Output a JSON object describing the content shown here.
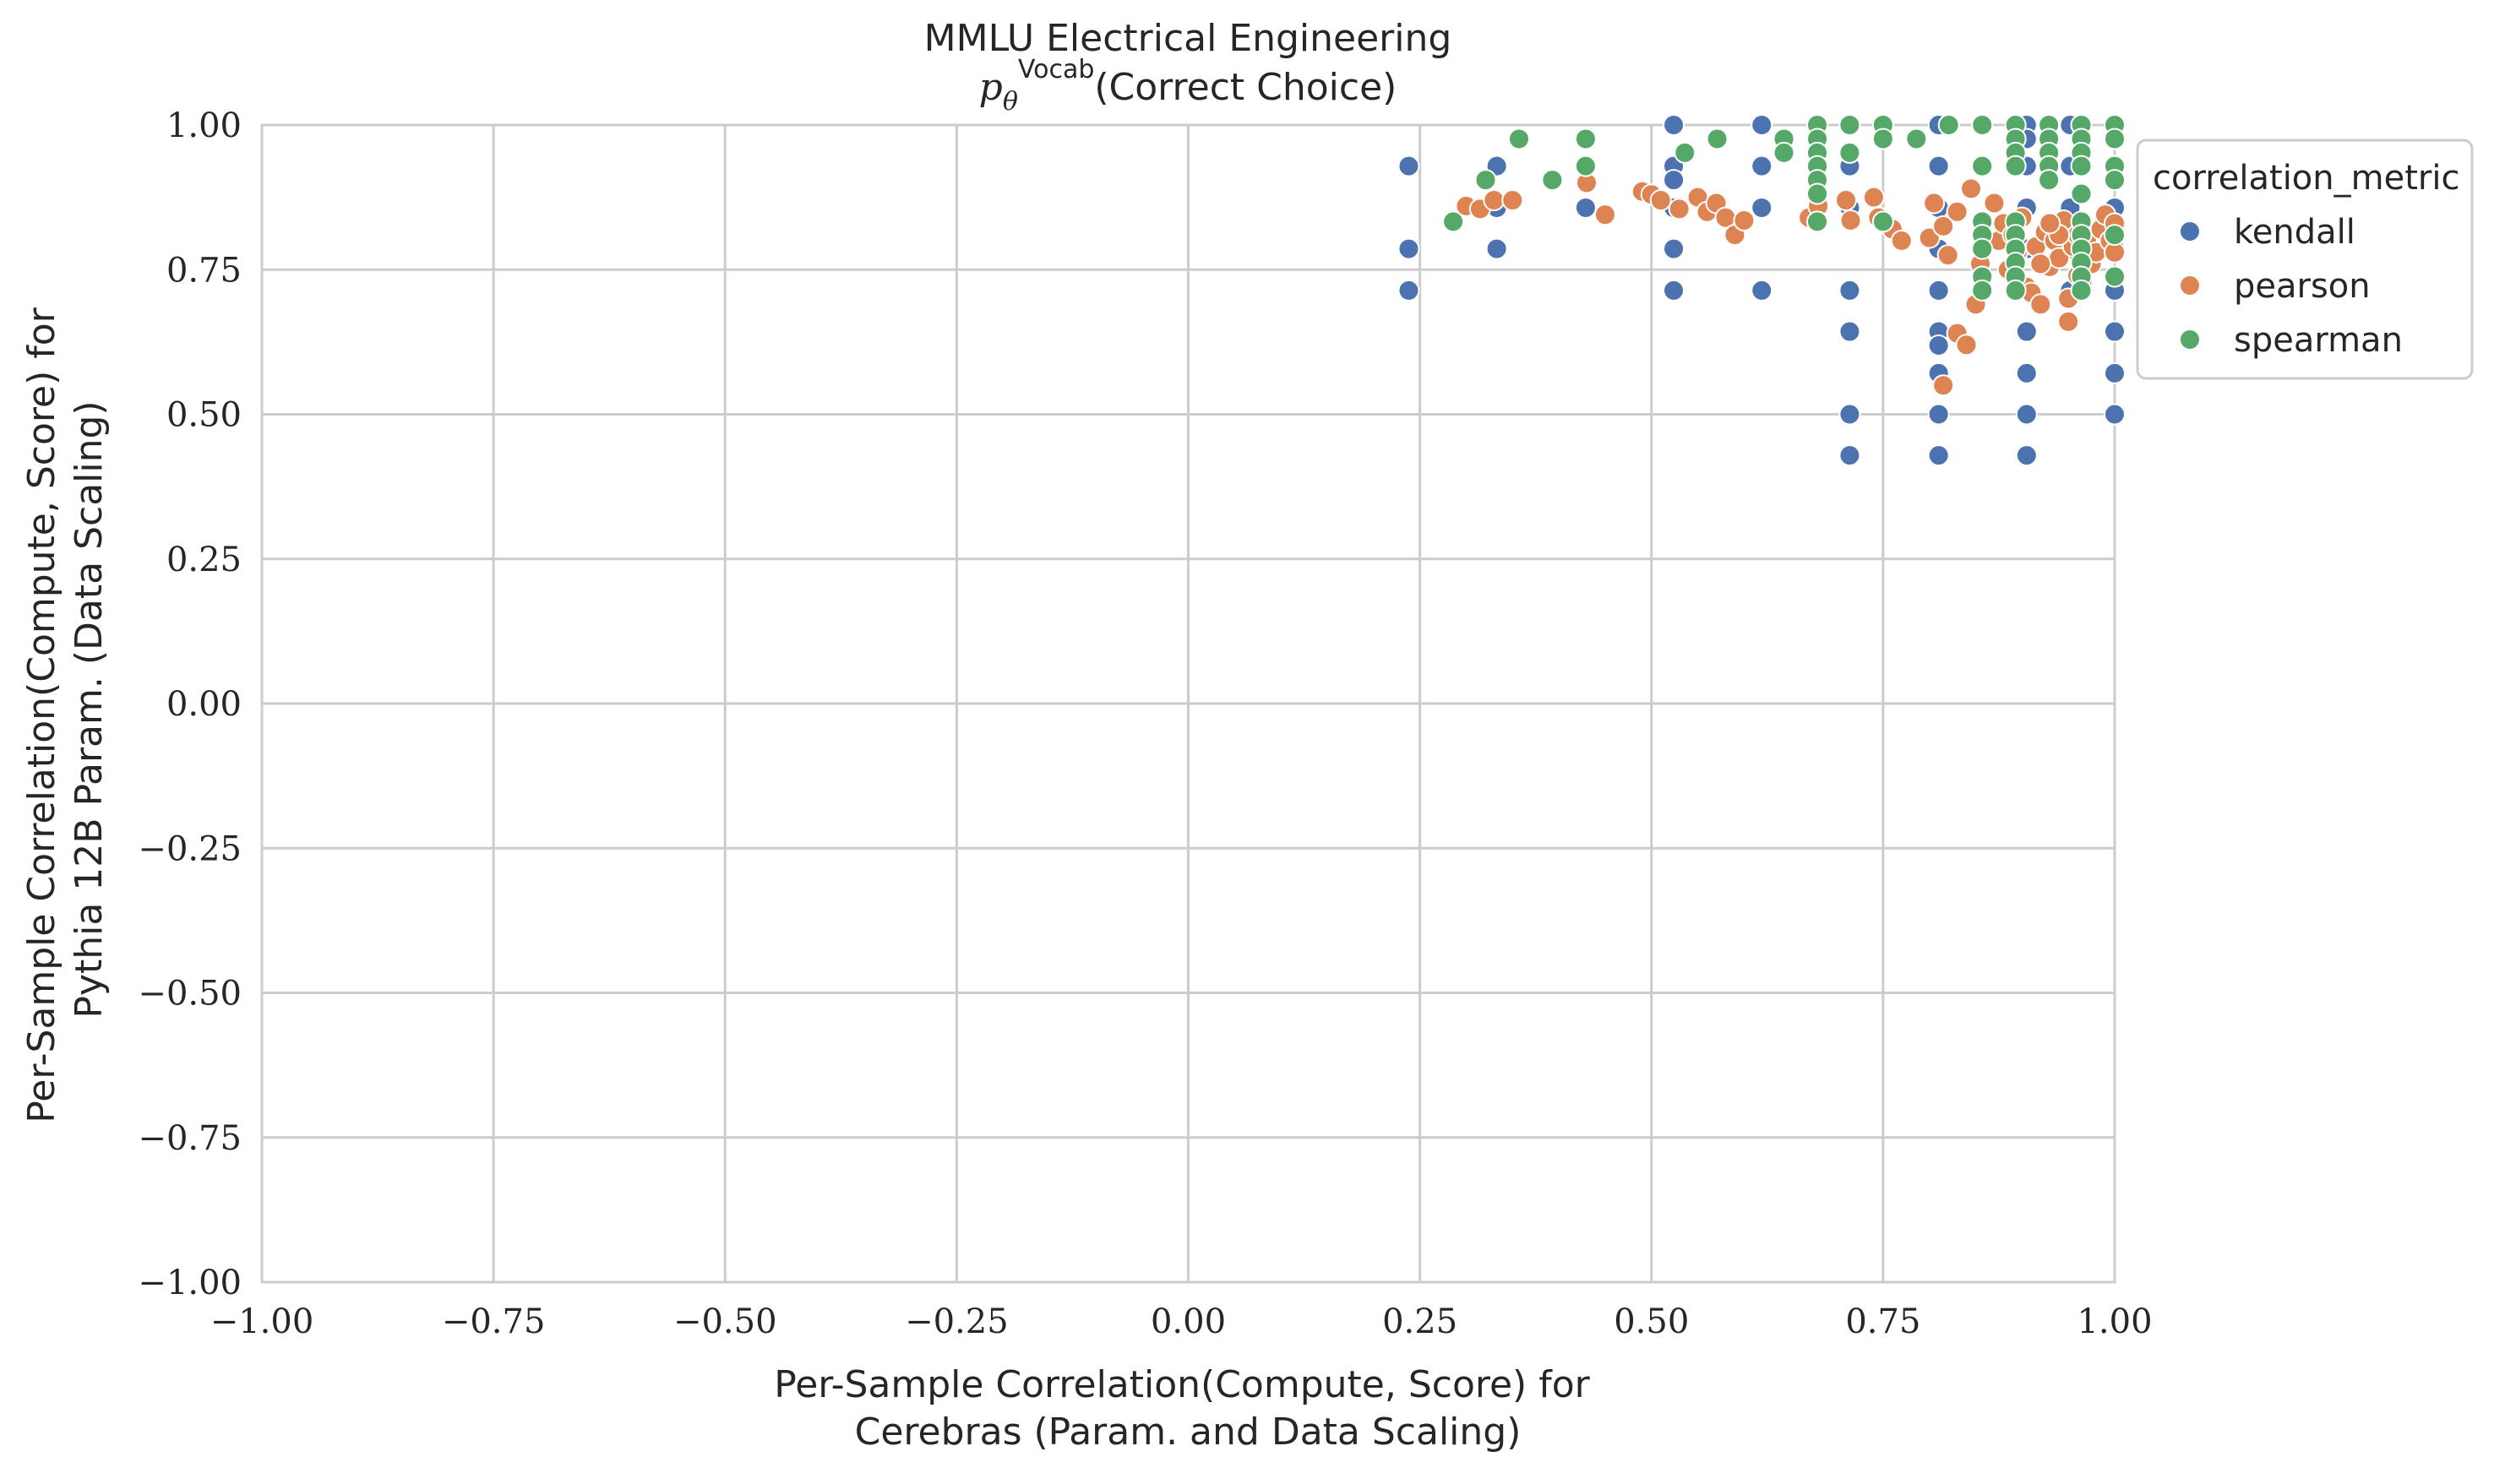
{
  "chart_data": {
    "type": "scatter",
    "title": "MMLU Electrical Engineering",
    "subtitle": {
      "base": "p",
      "subscript": "θ",
      "superscript": "Vocab",
      "rest": "(Correct Choice)"
    },
    "xlabel": [
      "Per-Sample Correlation(Compute, Score) for",
      "Cerebras (Param. and Data Scaling)"
    ],
    "ylabel": [
      "Per-Sample Correlation(Compute, Score) for",
      "Pythia 12B Param. (Data Scaling)"
    ],
    "xlim": [
      -1.0,
      1.0
    ],
    "ylim": [
      -1.0,
      1.0
    ],
    "xticks": [
      -1.0,
      -0.75,
      -0.5,
      -0.25,
      0.0,
      0.25,
      0.5,
      0.75,
      1.0
    ],
    "yticks": [
      -1.0,
      -0.75,
      -0.5,
      -0.25,
      0.0,
      0.25,
      0.5,
      0.75,
      1.0
    ],
    "xtick_labels": [
      "−1.00",
      "−0.75",
      "−0.50",
      "−0.25",
      "0.00",
      "0.25",
      "0.50",
      "0.75",
      "1.00"
    ],
    "ytick_labels": [
      "−1.00",
      "−0.75",
      "−0.50",
      "−0.25",
      "0.00",
      "0.25",
      "0.50",
      "0.75",
      "1.00"
    ],
    "grid": true,
    "legend": {
      "title": "correlation_metric",
      "placement": "outside-right-top"
    },
    "series": [
      {
        "name": "kendall",
        "color": "#4c72b0",
        "points": [
          [
            0.238,
            0.929
          ],
          [
            0.238,
            0.786
          ],
          [
            0.238,
            0.714
          ],
          [
            0.333,
            0.929
          ],
          [
            0.333,
            0.857
          ],
          [
            0.333,
            0.786
          ],
          [
            0.429,
            0.857
          ],
          [
            0.524,
            1.0
          ],
          [
            0.524,
            0.929
          ],
          [
            0.524,
            0.905
          ],
          [
            0.524,
            0.857
          ],
          [
            0.524,
            0.786
          ],
          [
            0.524,
            0.714
          ],
          [
            0.619,
            1.0
          ],
          [
            0.619,
            0.929
          ],
          [
            0.619,
            0.857
          ],
          [
            0.619,
            0.714
          ],
          [
            0.714,
            1.0
          ],
          [
            0.714,
            0.929
          ],
          [
            0.714,
            0.857
          ],
          [
            0.714,
            0.714
          ],
          [
            0.714,
            0.643
          ],
          [
            0.714,
            0.5
          ],
          [
            0.714,
            0.429
          ],
          [
            0.81,
            1.0
          ],
          [
            0.81,
            0.929
          ],
          [
            0.81,
            0.857
          ],
          [
            0.81,
            0.786
          ],
          [
            0.81,
            0.714
          ],
          [
            0.81,
            0.643
          ],
          [
            0.81,
            0.619
          ],
          [
            0.81,
            0.571
          ],
          [
            0.81,
            0.5
          ],
          [
            0.81,
            0.429
          ],
          [
            0.905,
            1.0
          ],
          [
            0.905,
            0.976
          ],
          [
            0.905,
            0.929
          ],
          [
            0.905,
            0.857
          ],
          [
            0.905,
            0.786
          ],
          [
            0.905,
            0.714
          ],
          [
            0.905,
            0.643
          ],
          [
            0.905,
            0.571
          ],
          [
            0.905,
            0.5
          ],
          [
            0.905,
            0.429
          ],
          [
            0.952,
            1.0
          ],
          [
            0.952,
            0.929
          ],
          [
            0.952,
            0.857
          ],
          [
            0.952,
            0.786
          ],
          [
            0.952,
            0.714
          ],
          [
            1.0,
            1.0
          ],
          [
            1.0,
            0.929
          ],
          [
            1.0,
            0.857
          ],
          [
            1.0,
            0.786
          ],
          [
            1.0,
            0.714
          ],
          [
            1.0,
            0.643
          ],
          [
            1.0,
            0.571
          ],
          [
            1.0,
            0.5
          ]
        ]
      },
      {
        "name": "pearson",
        "color": "#dd8452",
        "points": [
          [
            0.3,
            0.86
          ],
          [
            0.315,
            0.855
          ],
          [
            0.33,
            0.87
          ],
          [
            0.35,
            0.87
          ],
          [
            0.43,
            0.9
          ],
          [
            0.45,
            0.845
          ],
          [
            0.49,
            0.885
          ],
          [
            0.5,
            0.88
          ],
          [
            0.51,
            0.87
          ],
          [
            0.53,
            0.855
          ],
          [
            0.55,
            0.875
          ],
          [
            0.56,
            0.85
          ],
          [
            0.57,
            0.865
          ],
          [
            0.58,
            0.84
          ],
          [
            0.59,
            0.81
          ],
          [
            0.6,
            0.835
          ],
          [
            0.67,
            0.84
          ],
          [
            0.68,
            0.86
          ],
          [
            0.71,
            0.87
          ],
          [
            0.715,
            0.835
          ],
          [
            0.74,
            0.875
          ],
          [
            0.745,
            0.84
          ],
          [
            0.76,
            0.82
          ],
          [
            0.77,
            0.8
          ],
          [
            0.8,
            0.805
          ],
          [
            0.805,
            0.865
          ],
          [
            0.815,
            0.825
          ],
          [
            0.815,
            0.55
          ],
          [
            0.82,
            0.775
          ],
          [
            0.83,
            0.85
          ],
          [
            0.83,
            0.64
          ],
          [
            0.84,
            0.62
          ],
          [
            0.845,
            0.89
          ],
          [
            0.85,
            0.69
          ],
          [
            0.855,
            0.76
          ],
          [
            0.86,
            0.795
          ],
          [
            0.87,
            0.865
          ],
          [
            0.875,
            0.8
          ],
          [
            0.88,
            0.83
          ],
          [
            0.885,
            0.75
          ],
          [
            0.89,
            0.81
          ],
          [
            0.895,
            0.78
          ],
          [
            0.9,
            0.84
          ],
          [
            0.905,
            0.72
          ],
          [
            0.91,
            0.71
          ],
          [
            0.915,
            0.79
          ],
          [
            0.92,
            0.69
          ],
          [
            0.925,
            0.815
          ],
          [
            0.93,
            0.755
          ],
          [
            0.935,
            0.8
          ],
          [
            0.94,
            0.77
          ],
          [
            0.945,
            0.835
          ],
          [
            0.95,
            0.7
          ],
          [
            0.955,
            0.79
          ],
          [
            0.96,
            0.81
          ],
          [
            0.965,
            0.73
          ],
          [
            0.97,
            0.8
          ],
          [
            0.975,
            0.76
          ],
          [
            0.98,
            0.78
          ],
          [
            0.985,
            0.82
          ],
          [
            0.99,
            0.845
          ],
          [
            0.995,
            0.8
          ],
          [
            1.0,
            0.83
          ],
          [
            1.0,
            0.78
          ],
          [
            0.95,
            0.66
          ],
          [
            0.96,
            0.74
          ],
          [
            0.94,
            0.81
          ],
          [
            0.93,
            0.83
          ],
          [
            0.92,
            0.76
          ]
        ]
      },
      {
        "name": "spearman",
        "color": "#55a868",
        "points": [
          [
            0.286,
            0.833
          ],
          [
            0.321,
            0.905
          ],
          [
            0.357,
            0.976
          ],
          [
            0.393,
            0.905
          ],
          [
            0.429,
            0.976
          ],
          [
            0.429,
            0.929
          ],
          [
            0.536,
            0.952
          ],
          [
            0.571,
            0.976
          ],
          [
            0.643,
            0.976
          ],
          [
            0.643,
            0.952
          ],
          [
            0.679,
            1.0
          ],
          [
            0.679,
            0.976
          ],
          [
            0.679,
            0.952
          ],
          [
            0.679,
            0.929
          ],
          [
            0.679,
            0.905
          ],
          [
            0.679,
            0.881
          ],
          [
            0.679,
            0.833
          ],
          [
            0.714,
            1.0
          ],
          [
            0.714,
            0.952
          ],
          [
            0.75,
            1.0
          ],
          [
            0.75,
            0.976
          ],
          [
            0.75,
            0.833
          ],
          [
            0.786,
            0.976
          ],
          [
            0.821,
            1.0
          ],
          [
            0.857,
            1.0
          ],
          [
            0.857,
            0.929
          ],
          [
            0.857,
            0.833
          ],
          [
            0.857,
            0.81
          ],
          [
            0.857,
            0.786
          ],
          [
            0.857,
            0.738
          ],
          [
            0.857,
            0.714
          ],
          [
            0.893,
            1.0
          ],
          [
            0.893,
            0.976
          ],
          [
            0.893,
            0.952
          ],
          [
            0.893,
            0.929
          ],
          [
            0.893,
            0.833
          ],
          [
            0.893,
            0.81
          ],
          [
            0.893,
            0.786
          ],
          [
            0.893,
            0.762
          ],
          [
            0.893,
            0.738
          ],
          [
            0.893,
            0.714
          ],
          [
            0.929,
            1.0
          ],
          [
            0.929,
            0.976
          ],
          [
            0.929,
            0.952
          ],
          [
            0.929,
            0.929
          ],
          [
            0.929,
            0.905
          ],
          [
            0.964,
            1.0
          ],
          [
            0.964,
            0.976
          ],
          [
            0.964,
            0.952
          ],
          [
            0.964,
            0.929
          ],
          [
            0.964,
            0.881
          ],
          [
            0.964,
            0.833
          ],
          [
            0.964,
            0.81
          ],
          [
            0.964,
            0.786
          ],
          [
            0.964,
            0.762
          ],
          [
            0.964,
            0.738
          ],
          [
            0.964,
            0.714
          ],
          [
            1.0,
            1.0
          ],
          [
            1.0,
            0.976
          ],
          [
            1.0,
            0.929
          ],
          [
            1.0,
            0.905
          ],
          [
            1.0,
            0.81
          ],
          [
            1.0,
            0.738
          ]
        ]
      }
    ]
  }
}
